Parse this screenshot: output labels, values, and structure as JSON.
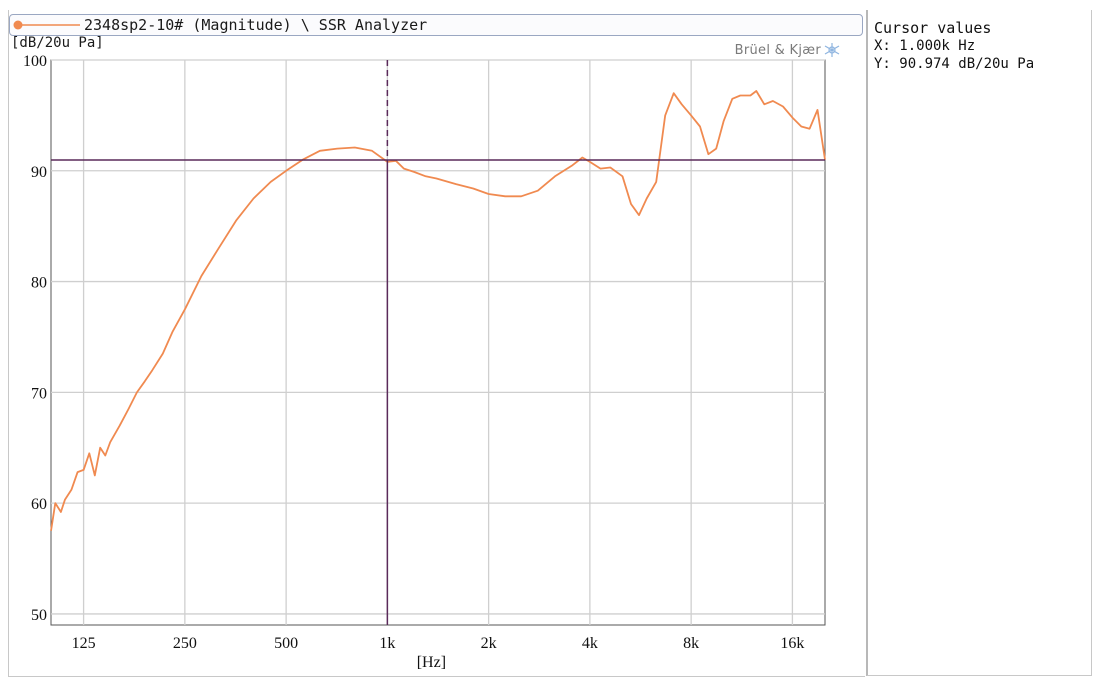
{
  "legend": {
    "series_label": "2348sp2-10# (Magnitude) \\ SSR Analyzer",
    "series_color": "#f08a50"
  },
  "brand": {
    "name": "Brüel & Kjær"
  },
  "cursor_panel": {
    "title": "Cursor values",
    "x_text": "X: 1.000k Hz",
    "y_text": "Y: 90.974 dB/20u Pa"
  },
  "colors": {
    "grid": "#cfcfcf",
    "cursor": "#5a2a5a",
    "curve": "#f08a50"
  },
  "chart_data": {
    "type": "line",
    "title": "",
    "xlabel": "[Hz]",
    "ylabel": "[dB/20u Pa]",
    "x_scale": "log",
    "xlim": [
      100,
      20000
    ],
    "ylim": [
      49,
      100
    ],
    "grid": true,
    "x_ticks": [
      {
        "value": 125,
        "label": "125"
      },
      {
        "value": 250,
        "label": "250"
      },
      {
        "value": 500,
        "label": "500"
      },
      {
        "value": 1000,
        "label": "1k"
      },
      {
        "value": 2000,
        "label": "2k"
      },
      {
        "value": 4000,
        "label": "4k"
      },
      {
        "value": 8000,
        "label": "8k"
      },
      {
        "value": 16000,
        "label": "16k"
      }
    ],
    "y_ticks": [
      {
        "value": 50,
        "label": "50"
      },
      {
        "value": 60,
        "label": "60"
      },
      {
        "value": 70,
        "label": "70"
      },
      {
        "value": 80,
        "label": "80"
      },
      {
        "value": 90,
        "label": "90"
      },
      {
        "value": 100,
        "label": "100"
      }
    ],
    "cursor": {
      "x": 1000,
      "y": 90.974
    },
    "series": [
      {
        "x": [
          100,
          103,
          107,
          110,
          115,
          120,
          125,
          130,
          135,
          140,
          145,
          150,
          160,
          170,
          180,
          190,
          200,
          215,
          230,
          250,
          280,
          315,
          355,
          400,
          450,
          500,
          560,
          630,
          710,
          800,
          900,
          1000,
          1060,
          1120,
          1200,
          1300,
          1400,
          1600,
          1800,
          2000,
          2240,
          2500,
          2800,
          3150,
          3550,
          3800,
          4000,
          4300,
          4600,
          5000,
          5300,
          5600,
          5900,
          6300,
          6700,
          7100,
          7500,
          8000,
          8500,
          9000,
          9500,
          10000,
          10600,
          11200,
          12000,
          12500,
          13200,
          14000,
          15000,
          16000,
          17000,
          18000,
          19000,
          20000
        ],
        "y": [
          57.5,
          60.0,
          59.2,
          60.3,
          61.2,
          62.8,
          63.0,
          64.5,
          62.5,
          65.0,
          64.3,
          65.5,
          67.0,
          68.5,
          70.0,
          71.0,
          72.0,
          73.5,
          75.5,
          77.5,
          80.5,
          83.0,
          85.5,
          87.5,
          89.0,
          90.0,
          91.0,
          91.8,
          92.0,
          92.1,
          91.8,
          90.8,
          90.9,
          90.2,
          89.9,
          89.5,
          89.3,
          88.8,
          88.4,
          87.9,
          87.7,
          87.7,
          88.2,
          89.5,
          90.5,
          91.2,
          90.8,
          90.2,
          90.3,
          89.5,
          87.0,
          86.0,
          87.5,
          89.0,
          95.0,
          97.0,
          96.0,
          95.0,
          94.0,
          91.5,
          92.0,
          94.5,
          96.5,
          96.8,
          96.8,
          97.2,
          96.0,
          96.3,
          95.8,
          94.8,
          94.0,
          93.8,
          95.5,
          91.0
        ]
      }
    ]
  }
}
